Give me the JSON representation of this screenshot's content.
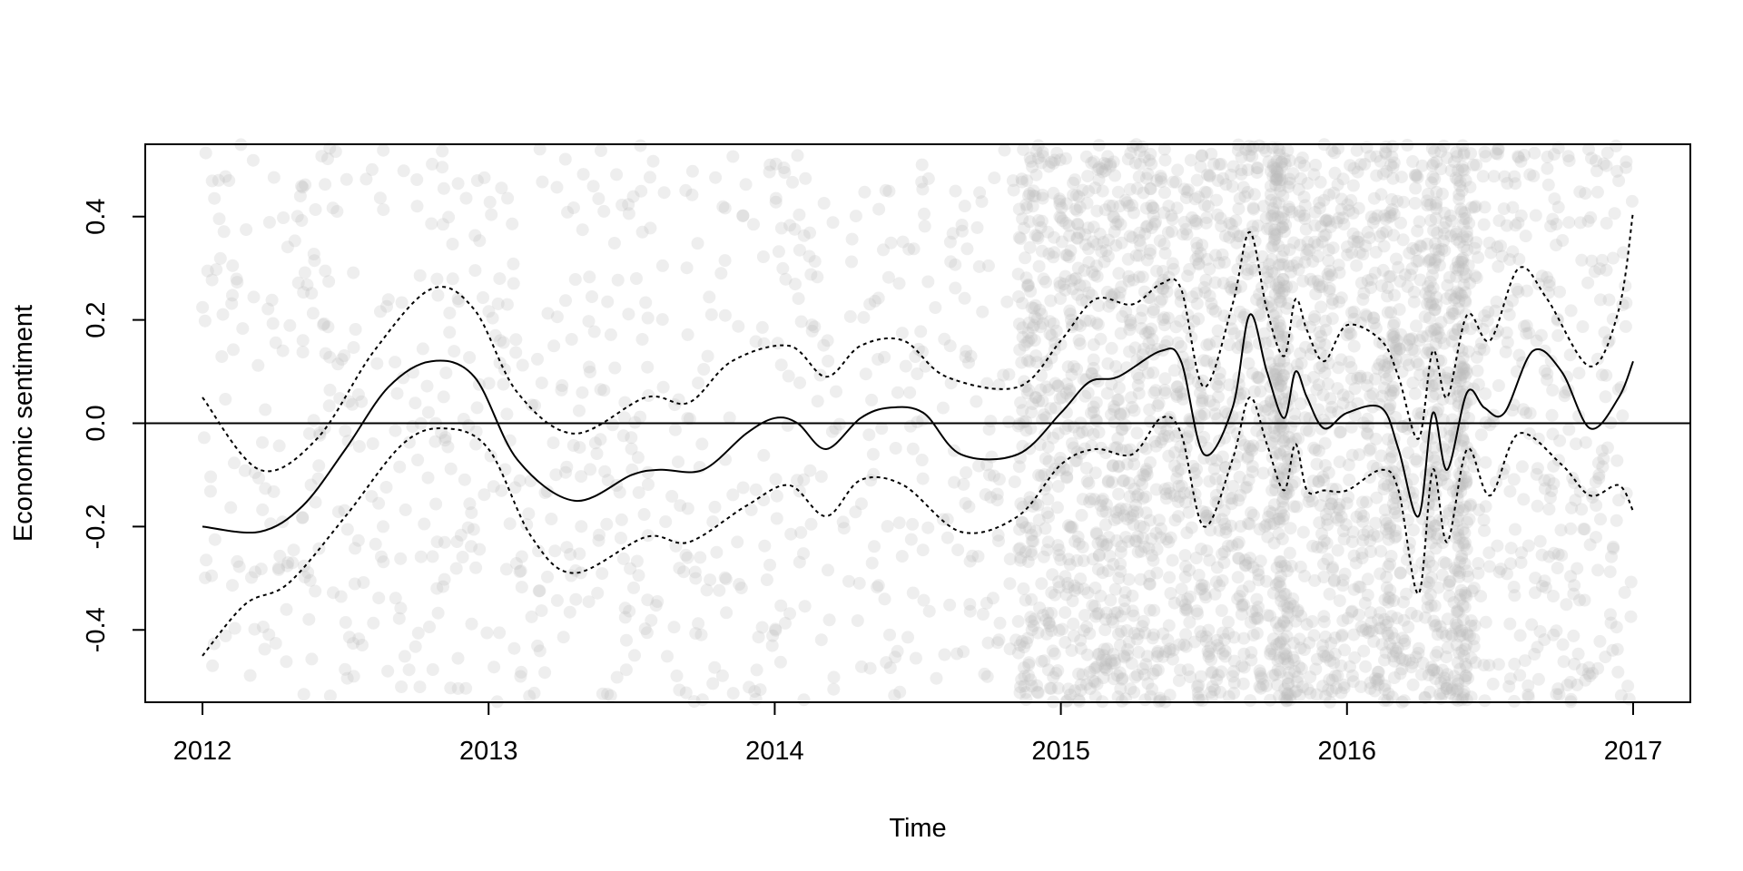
{
  "chart_data": {
    "type": "line",
    "title": "",
    "xlabel": "Time",
    "ylabel": "Economic sentiment",
    "xlim": [
      2011.8,
      2017.2
    ],
    "ylim": [
      -0.54,
      0.54
    ],
    "grid": false,
    "legend": "none",
    "x_ticks": [
      2012,
      2013,
      2014,
      2015,
      2016,
      2017
    ],
    "x_tick_labels": [
      "2012",
      "2013",
      "2014",
      "2015",
      "2016",
      "2017"
    ],
    "y_ticks": [
      -0.4,
      -0.2,
      0.0,
      0.2,
      0.4
    ],
    "y_tick_labels": [
      "-0.4",
      "-0.2",
      "0.0",
      "0.2",
      "0.4"
    ],
    "reference_line": {
      "y": 0.0,
      "color": "#000000"
    },
    "scatter": {
      "color": "#bdbdbd",
      "alpha": 0.25,
      "approximate_count": 4000,
      "data_range": [
        -0.54,
        0.54
      ]
    },
    "series": [
      {
        "role": "smooth-fit",
        "style": "solid",
        "color": "#000000",
        "x": [
          2012.0,
          2012.2,
          2012.35,
          2012.5,
          2012.65,
          2012.8,
          2012.95,
          2013.1,
          2013.3,
          2013.5,
          2013.6,
          2013.75,
          2013.9,
          2014.0,
          2014.08,
          2014.18,
          2014.3,
          2014.4,
          2014.52,
          2014.65,
          2014.85,
          2015.0,
          2015.1,
          2015.2,
          2015.35,
          2015.42,
          2015.5,
          2015.6,
          2015.66,
          2015.72,
          2015.78,
          2015.82,
          2015.86,
          2015.92,
          2016.0,
          2016.12,
          2016.18,
          2016.25,
          2016.3,
          2016.35,
          2016.42,
          2016.48,
          2016.55,
          2016.65,
          2016.75,
          2016.85,
          2016.95,
          2017.0
        ],
        "y": [
          -0.2,
          -0.21,
          -0.16,
          -0.05,
          0.07,
          0.12,
          0.09,
          -0.07,
          -0.15,
          -0.1,
          -0.09,
          -0.09,
          -0.02,
          0.01,
          0.0,
          -0.05,
          0.01,
          0.03,
          0.02,
          -0.06,
          -0.06,
          0.02,
          0.08,
          0.09,
          0.14,
          0.12,
          -0.06,
          0.03,
          0.21,
          0.1,
          0.01,
          0.1,
          0.05,
          -0.01,
          0.02,
          0.03,
          -0.05,
          -0.18,
          0.02,
          -0.09,
          0.06,
          0.03,
          0.02,
          0.14,
          0.1,
          -0.01,
          0.05,
          0.12
        ]
      },
      {
        "role": "upper-band",
        "style": "dotted",
        "color": "#000000",
        "x": [
          2012.0,
          2012.2,
          2012.4,
          2012.6,
          2012.8,
          2012.95,
          2013.1,
          2013.3,
          2013.55,
          2013.7,
          2013.85,
          2014.05,
          2014.18,
          2014.3,
          2014.45,
          2014.6,
          2014.85,
          2015.0,
          2015.12,
          2015.25,
          2015.35,
          2015.42,
          2015.5,
          2015.6,
          2015.66,
          2015.72,
          2015.78,
          2015.82,
          2015.86,
          2015.92,
          2016.0,
          2016.12,
          2016.18,
          2016.25,
          2016.3,
          2016.35,
          2016.42,
          2016.5,
          2016.6,
          2016.7,
          2016.85,
          2016.95,
          2017.0
        ],
        "y": [
          0.05,
          -0.09,
          -0.03,
          0.14,
          0.26,
          0.22,
          0.06,
          -0.02,
          0.05,
          0.04,
          0.12,
          0.15,
          0.09,
          0.15,
          0.16,
          0.09,
          0.07,
          0.16,
          0.24,
          0.23,
          0.27,
          0.26,
          0.07,
          0.23,
          0.37,
          0.22,
          0.13,
          0.24,
          0.18,
          0.12,
          0.19,
          0.16,
          0.09,
          -0.03,
          0.14,
          0.05,
          0.21,
          0.16,
          0.3,
          0.24,
          0.11,
          0.22,
          0.41
        ]
      },
      {
        "role": "lower-band",
        "style": "dotted",
        "color": "#000000",
        "x": [
          2012.0,
          2012.15,
          2012.3,
          2012.5,
          2012.7,
          2012.85,
          2013.0,
          2013.15,
          2013.3,
          2013.55,
          2013.7,
          2013.9,
          2014.05,
          2014.18,
          2014.3,
          2014.45,
          2014.65,
          2014.85,
          2015.0,
          2015.12,
          2015.25,
          2015.35,
          2015.42,
          2015.5,
          2015.6,
          2015.66,
          2015.72,
          2015.78,
          2015.82,
          2015.86,
          2015.92,
          2016.0,
          2016.12,
          2016.18,
          2016.25,
          2016.3,
          2016.35,
          2016.42,
          2016.5,
          2016.6,
          2016.75,
          2016.85,
          2016.95,
          2017.0
        ],
        "y": [
          -0.45,
          -0.35,
          -0.31,
          -0.18,
          -0.04,
          -0.01,
          -0.05,
          -0.22,
          -0.29,
          -0.22,
          -0.23,
          -0.16,
          -0.12,
          -0.18,
          -0.11,
          -0.12,
          -0.21,
          -0.18,
          -0.08,
          -0.05,
          -0.06,
          0.01,
          -0.02,
          -0.2,
          -0.07,
          0.05,
          -0.04,
          -0.13,
          -0.04,
          -0.13,
          -0.13,
          -0.13,
          -0.09,
          -0.13,
          -0.33,
          -0.09,
          -0.23,
          -0.05,
          -0.14,
          -0.02,
          -0.08,
          -0.14,
          -0.12,
          -0.17
        ]
      }
    ]
  }
}
